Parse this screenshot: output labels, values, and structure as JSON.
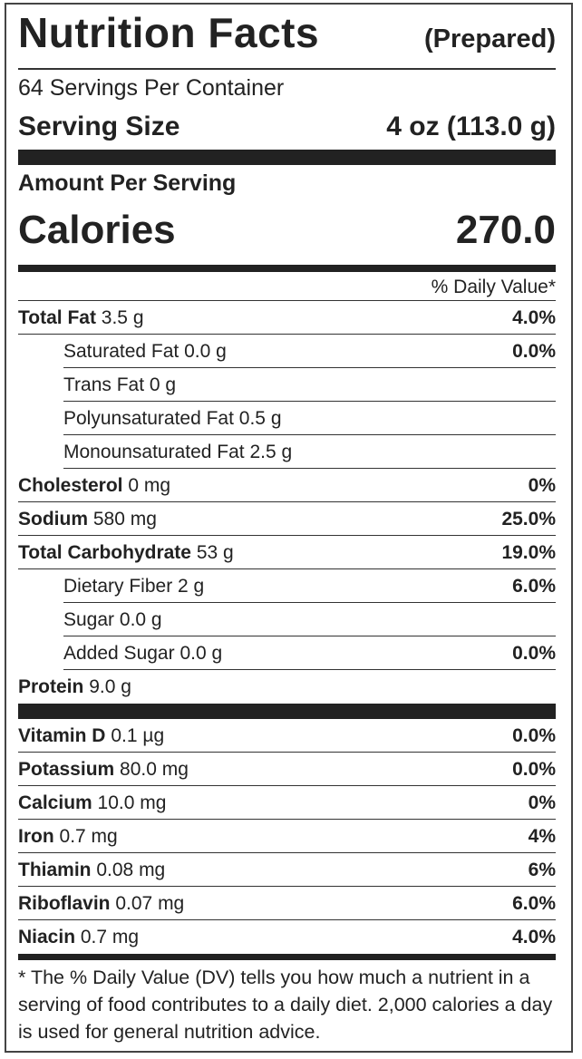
{
  "header": {
    "title": "Nutrition Facts",
    "qualifier": "(Prepared)"
  },
  "servings": "64 Servings Per Container",
  "serving_size": {
    "label": "Serving Size",
    "value": "4 oz (113.0 g)"
  },
  "amount_per_serving": "Amount Per Serving",
  "calories": {
    "label": "Calories",
    "value": "270.0"
  },
  "daily_value_header": "% Daily Value*",
  "nutrients": [
    {
      "name": "Total Fat",
      "amount": "3.5 g",
      "dv": "4.0%",
      "sub": [
        {
          "name": "Saturated Fat",
          "amount": "0.0 g",
          "dv": "0.0%"
        },
        {
          "name": "Trans Fat",
          "amount": "0 g"
        },
        {
          "name": "Polyunsaturated Fat",
          "amount": "0.5 g"
        },
        {
          "name": "Monounsaturated Fat",
          "amount": "2.5 g"
        }
      ]
    },
    {
      "name": "Cholesterol",
      "amount": "0 mg",
      "dv": "0%"
    },
    {
      "name": "Sodium",
      "amount": "580 mg",
      "dv": "25.0%"
    },
    {
      "name": "Total Carbohydrate",
      "amount": "53 g",
      "dv": "19.0%",
      "sub": [
        {
          "name": "Dietary Fiber",
          "amount": "2 g",
          "dv": "6.0%"
        },
        {
          "name": "Sugar",
          "amount": "0.0 g"
        },
        {
          "name": "Added Sugar",
          "amount": "0.0 g",
          "dv": "0.0%"
        }
      ]
    },
    {
      "name": "Protein",
      "amount": "9.0 g"
    }
  ],
  "micronutrients": [
    {
      "name": "Vitamin D",
      "amount": "0.1 µg",
      "dv": "0.0%"
    },
    {
      "name": "Potassium",
      "amount": "80.0 mg",
      "dv": "0.0%"
    },
    {
      "name": "Calcium",
      "amount": "10.0 mg",
      "dv": "0%"
    },
    {
      "name": "Iron",
      "amount": "0.7 mg",
      "dv": "4%"
    },
    {
      "name": "Thiamin",
      "amount": "0.08 mg",
      "dv": "6%"
    },
    {
      "name": "Riboflavin",
      "amount": "0.07 mg",
      "dv": "6.0%"
    },
    {
      "name": "Niacin",
      "amount": "0.7 mg",
      "dv": "4.0%"
    }
  ],
  "footnote": "* The % Daily Value (DV) tells you how much a nutrient in a serving of food contributes to a daily diet. 2,000 calories a day is used for general nutrition advice."
}
